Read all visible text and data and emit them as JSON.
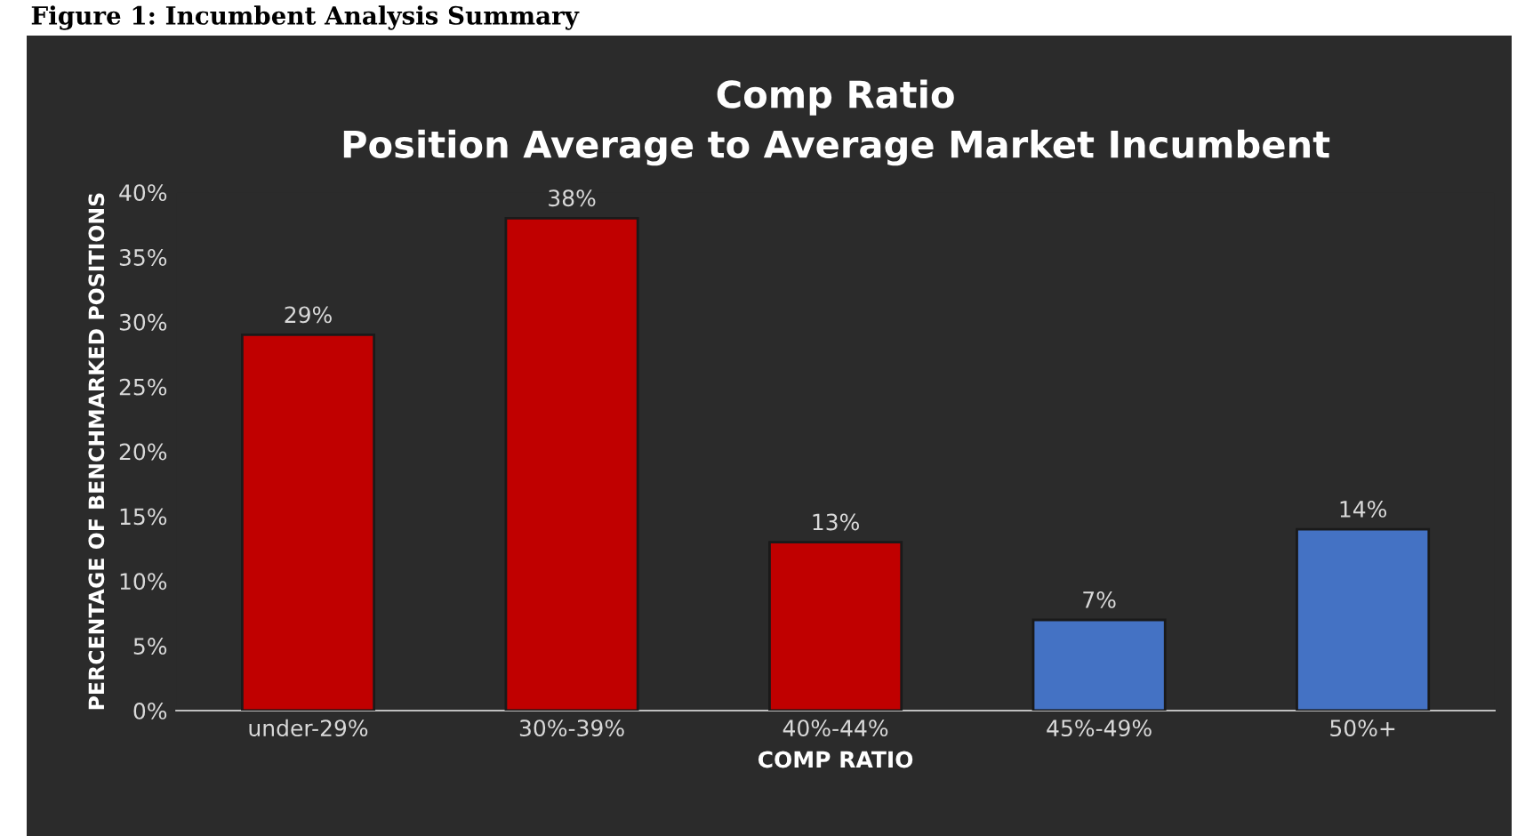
{
  "chart_data": {
    "type": "bar",
    "title": "Comp Ratio\nPosition Average to Average Market Incumbent",
    "xlabel": "COMP RATIO",
    "ylabel": "PERCENTAGE OF BENCHMARKED POSITIONS",
    "annotations": [
      "Figure 1: Incumbent Analysis Summary"
    ],
    "categories": [
      "under-29%",
      "30%-39%",
      "40%-44%",
      "45%-49%",
      "50%+"
    ],
    "values": [
      29,
      38,
      13,
      7,
      14
    ],
    "colors": [
      "#c00000",
      "#c00000",
      "#c00000",
      "#4472c4",
      "#4472c4"
    ],
    "value_labels": [
      "29%",
      "38%",
      "13%",
      "7%",
      "14%"
    ],
    "ylim": [
      0,
      40
    ],
    "yticks": [
      {
        "value": 0,
        "label": "0%"
      },
      {
        "value": 5,
        "label": "5%"
      },
      {
        "value": 10,
        "label": "10%"
      },
      {
        "value": 15,
        "label": "15%"
      },
      {
        "value": 20,
        "label": "20%"
      },
      {
        "value": 25,
        "label": "25%"
      },
      {
        "value": 30,
        "label": "30%"
      },
      {
        "value": 35,
        "label": "35%"
      },
      {
        "value": 40,
        "label": "40%"
      }
    ],
    "grid": false,
    "legend": false
  }
}
